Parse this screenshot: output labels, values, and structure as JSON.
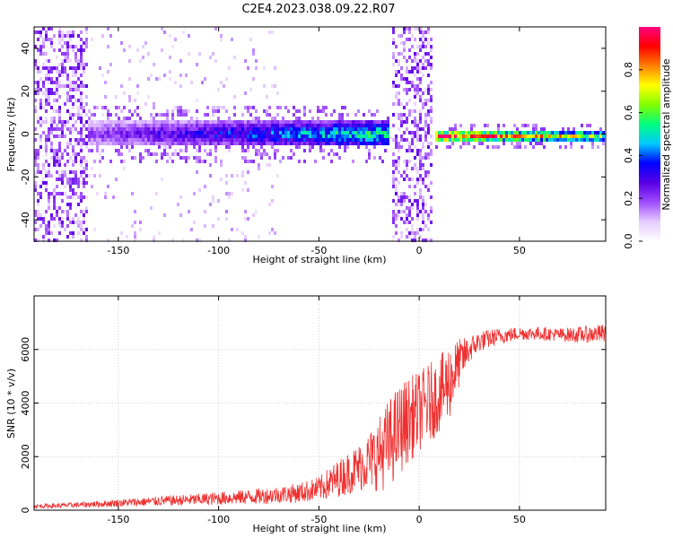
{
  "title": "C2E4.2023.038.09.22.R07",
  "chart_data": [
    {
      "type": "heatmap",
      "xlabel": "Height of straight line (km)",
      "ylabel": "Frequency (Hz)",
      "xlim": [
        -192,
        93
      ],
      "ylim": [
        -50,
        50
      ],
      "xticks": [
        -150,
        -100,
        -50,
        0,
        50
      ],
      "yticks": [
        -40,
        -20,
        0,
        20,
        40
      ],
      "colorbar": {
        "label": "Normalized spectral amplitude",
        "range": [
          0,
          1
        ],
        "ticks": [
          0.0,
          0.2,
          0.4,
          0.6,
          0.8
        ],
        "tick_labels": [
          "0.0",
          "0.2",
          "0.4",
          "0.6",
          "0.8"
        ],
        "colors": [
          "#ffffff",
          "#e6ccff",
          "#a04cff",
          "#5a00e6",
          "#0000ff",
          "#00c8ff",
          "#00ff80",
          "#80ff00",
          "#ffff00",
          "#ff8000",
          "#ff0000",
          "#ff0080"
        ]
      },
      "features": [
        {
          "x_range": [
            -192,
            -165
          ],
          "frequency_range": [
            -50,
            50
          ],
          "amplitude": 0.15
        },
        {
          "x_range": [
            -165,
            -15
          ],
          "center_frequency": 0,
          "half_width_hz": 6,
          "amplitude_start": 0.2,
          "amplitude_end": 0.55
        },
        {
          "x_range": [
            -14,
            7
          ],
          "frequency_range": [
            -50,
            50
          ],
          "amplitude": 0.15
        },
        {
          "x_range": [
            8,
            93
          ],
          "center_frequency": -1,
          "half_width_hz": 3,
          "amplitude_start": 0.95,
          "amplitude_end": 0.6
        }
      ]
    },
    {
      "type": "line",
      "xlabel": "Height of straight line (km)",
      "ylabel": "SNR (10 * v/v)",
      "xlim": [
        -192,
        93
      ],
      "ylim": [
        0,
        8000
      ],
      "xticks": [
        -150,
        -100,
        -50,
        0,
        50
      ],
      "yticks": [
        0,
        2000,
        4000,
        6000
      ],
      "color": "#f03030",
      "x": [
        -192,
        -180,
        -170,
        -160,
        -150,
        -140,
        -130,
        -120,
        -110,
        -100,
        -90,
        -80,
        -70,
        -60,
        -50,
        -45,
        -40,
        -35,
        -30,
        -25,
        -20,
        -15,
        -10,
        -5,
        0,
        5,
        10,
        15,
        20,
        25,
        30,
        40,
        50,
        60,
        70,
        80,
        93
      ],
      "y": [
        150,
        170,
        200,
        230,
        270,
        300,
        340,
        370,
        400,
        440,
        480,
        520,
        580,
        650,
        800,
        1000,
        1200,
        1400,
        1600,
        1850,
        2100,
        2500,
        3000,
        3400,
        3700,
        4000,
        4300,
        4800,
        5500,
        6000,
        6300,
        6500,
        6600,
        6600,
        6550,
        6550,
        6600
      ],
      "noise_amplitude": [
        80,
        90,
        100,
        120,
        140,
        160,
        180,
        200,
        220,
        250,
        270,
        300,
        320,
        380,
        450,
        600,
        700,
        800,
        900,
        1100,
        1400,
        1700,
        1700,
        1600,
        1500,
        1500,
        1400,
        1500,
        900,
        500,
        400,
        300,
        250,
        250,
        250,
        300,
        350
      ]
    }
  ]
}
